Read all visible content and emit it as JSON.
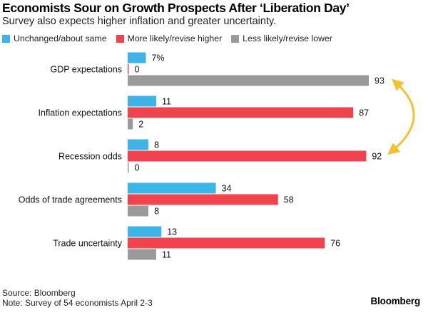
{
  "header": {
    "title": "Economists Sour on Growth Prospects After ‘Liberation Day’",
    "subtitle": "Survey also expects higher inflation and greater uncertainty."
  },
  "legend": [
    {
      "label": "Unchanged/about same",
      "color": "#3cb4e7"
    },
    {
      "label": "More likely/revise higher",
      "color": "#f0434e"
    },
    {
      "label": "Less likely/revise lower",
      "color": "#9a9a9a"
    }
  ],
  "chart_data": {
    "type": "bar",
    "orientation": "horizontal",
    "title": "Economists Sour on Growth Prospects After ‘Liberation Day’",
    "subtitle": "Survey also expects higher inflation and greater uncertainty.",
    "categories": [
      "GDP expectations",
      "Inflation expectations",
      "Recession odds",
      "Odds of trade agreements",
      "Trade uncertainty"
    ],
    "series": [
      {
        "name": "Unchanged/about same",
        "color": "#3cb4e7",
        "values": [
          7,
          11,
          8,
          34,
          13
        ],
        "labels": [
          "7%",
          "11",
          "8",
          "34",
          "13"
        ]
      },
      {
        "name": "More likely/revise higher",
        "color": "#f0434e",
        "values": [
          0,
          87,
          92,
          58,
          76
        ],
        "labels": [
          "0",
          "87",
          "92",
          "58",
          "76"
        ]
      },
      {
        "name": "Less likely/revise lower",
        "color": "#9a9a9a",
        "values": [
          93,
          2,
          0,
          8,
          11
        ],
        "labels": [
          "93",
          "2",
          "0",
          "8",
          "11"
        ]
      }
    ],
    "xlim": [
      0,
      100
    ],
    "xlabel": "",
    "ylabel": "",
    "grid": false,
    "legend_position": "top-left",
    "annotations": [
      {
        "type": "double-arrow",
        "from": "GDP expectations: Less likely/revise lower (93)",
        "to": "Recession odds: More likely/revise higher (92)",
        "color": "#f2c230"
      }
    ]
  },
  "footer": {
    "source": "Source: Bloomberg",
    "note": "Note: Survey of 54 economists April 2-3",
    "brand": "Bloomberg"
  }
}
